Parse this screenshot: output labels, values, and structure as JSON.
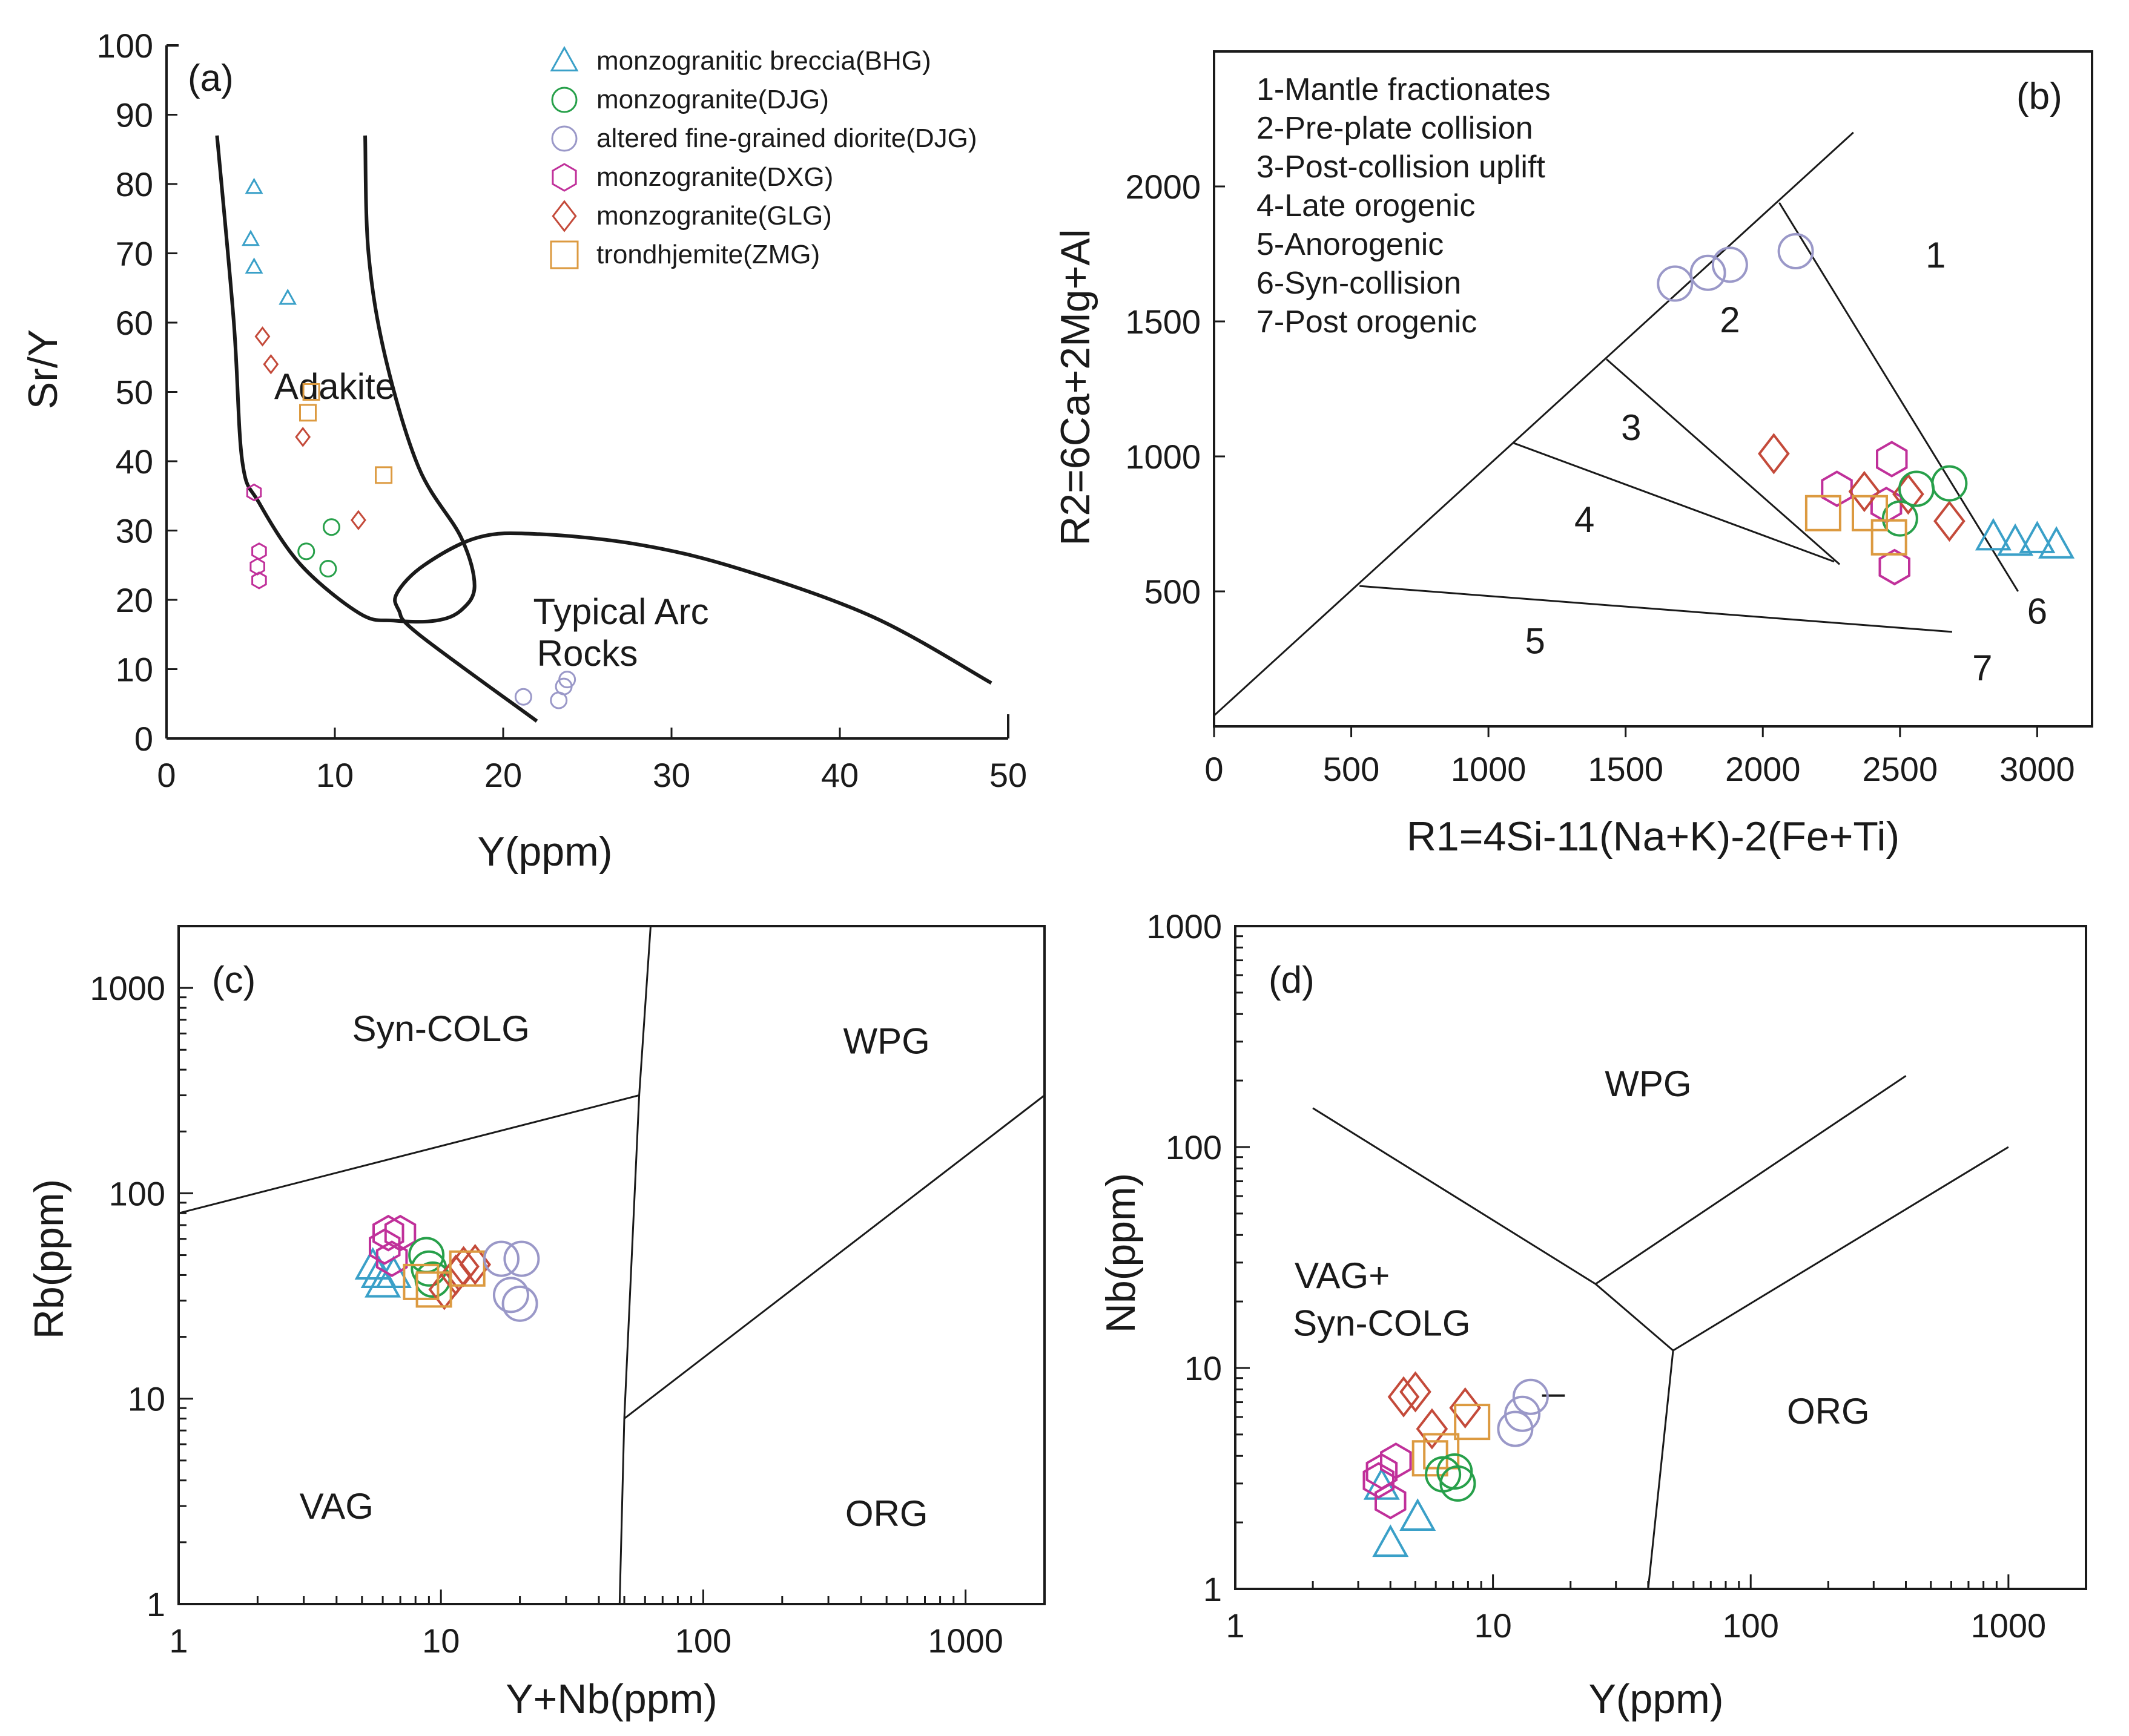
{
  "colors": {
    "BHG": "#3aa0c8",
    "DJG_mz": "#27a04a",
    "DJG_di": "#9a98c8",
    "DXG": "#c0309a",
    "GLG": "#c44a3a",
    "ZMG": "#dc9a40",
    "ink": "#1a1a1a"
  },
  "legend": [
    {
      "key": "BHG",
      "label": "monzogranitic breccia(BHG)",
      "marker": "triangle"
    },
    {
      "key": "DJG_mz",
      "label": "monzogranite(DJG)",
      "marker": "circle"
    },
    {
      "key": "DJG_di",
      "label": "altered fine-grained diorite(DJG)",
      "marker": "circle"
    },
    {
      "key": "DXG",
      "label": "monzogranite(DXG)",
      "marker": "hexagon"
    },
    {
      "key": "GLG",
      "label": "monzogranite(GLG)",
      "marker": "diamond"
    },
    {
      "key": "ZMG",
      "label": "trondhjemite(ZMG)",
      "marker": "square"
    }
  ],
  "chart_data": [
    {
      "id": "a",
      "type": "scatter",
      "panel_label": "(a)",
      "xlabel": "Y(ppm)",
      "ylabel": "Sr/Y",
      "xlim": [
        0,
        50
      ],
      "ylim": [
        0,
        100
      ],
      "xticks": [
        0,
        10,
        20,
        30,
        40,
        50
      ],
      "yticks": [
        0,
        10,
        20,
        30,
        40,
        50,
        60,
        70,
        80,
        90,
        100
      ],
      "regions": [
        {
          "label": "Adakite",
          "x": 10,
          "y": 49
        },
        {
          "label": "Typical Arc",
          "x": 27,
          "y": 16.5
        },
        {
          "label": "Rocks",
          "x": 25,
          "y": 10.5
        }
      ],
      "boundaries": [
        [
          [
            3,
            87
          ],
          [
            4,
            60
          ],
          [
            4.5,
            40
          ],
          [
            5.5,
            34
          ],
          [
            8,
            25
          ],
          [
            11.5,
            18
          ],
          [
            13.5,
            17
          ],
          [
            16,
            17
          ],
          [
            17.5,
            18.5
          ],
          [
            18.3,
            22
          ],
          [
            17.5,
            29
          ],
          [
            15,
            39
          ],
          [
            13,
            55
          ],
          [
            12,
            70
          ],
          [
            11.8,
            87
          ]
        ],
        [
          [
            22,
            2.5
          ],
          [
            15,
            15
          ],
          [
            13.8,
            18.5
          ],
          [
            13.7,
            21
          ],
          [
            15.3,
            25
          ],
          [
            18.5,
            29
          ],
          [
            22,
            29.5
          ],
          [
            28,
            28
          ],
          [
            34,
            24.5
          ],
          [
            42,
            17.5
          ],
          [
            49,
            8
          ]
        ]
      ],
      "series": [
        {
          "key": "BHG",
          "points": [
            [
              5.2,
              79.5
            ],
            [
              5.0,
              72
            ],
            [
              5.2,
              68
            ],
            [
              7.2,
              63.5
            ]
          ]
        },
        {
          "key": "DJG_mz",
          "points": [
            [
              8.3,
              27
            ],
            [
              9.8,
              30.5
            ],
            [
              9.6,
              24.5
            ]
          ]
        },
        {
          "key": "DJG_di",
          "points": [
            [
              21.2,
              6
            ],
            [
              23.3,
              5.5
            ],
            [
              23.8,
              8.5
            ],
            [
              23.6,
              7.5
            ]
          ]
        },
        {
          "key": "DXG",
          "points": [
            [
              5.2,
              35.5
            ],
            [
              5.5,
              27
            ],
            [
              5.4,
              24.8
            ],
            [
              5.5,
              22.8
            ]
          ]
        },
        {
          "key": "GLG",
          "points": [
            [
              5.7,
              58
            ],
            [
              6.2,
              54
            ],
            [
              8.1,
              43.5
            ],
            [
              11.4,
              31.5
            ]
          ]
        },
        {
          "key": "ZMG",
          "points": [
            [
              8.6,
              50
            ],
            [
              8.4,
              47
            ],
            [
              12.9,
              38
            ]
          ]
        }
      ]
    },
    {
      "id": "b",
      "type": "scatter",
      "panel_label": "(b)",
      "xlabel": "R1=4Si-11(Na+K)-2(Fe+Ti)",
      "ylabel": "R2=6Ca+2Mg+Al",
      "xlim": [
        0,
        3200
      ],
      "ylim": [
        0,
        2500
      ],
      "xticks": [
        0,
        500,
        1000,
        1500,
        2000,
        2500,
        3000
      ],
      "yticks": [
        500,
        1000,
        1500,
        2000
      ],
      "key_entries": [
        "1-Mantle fractionates",
        "2-Pre-plate collision",
        "3-Post-collision uplift",
        "4-Late orogenic",
        "5-Anorogenic",
        "6-Syn-collision",
        "7-Post orogenic"
      ],
      "regions": [
        {
          "label": "1",
          "x": 2630,
          "y": 1700
        },
        {
          "label": "2",
          "x": 1880,
          "y": 1460
        },
        {
          "label": "3",
          "x": 1520,
          "y": 1060
        },
        {
          "label": "4",
          "x": 1350,
          "y": 720
        },
        {
          "label": "5",
          "x": 1170,
          "y": 270
        },
        {
          "label": "6",
          "x": 3000,
          "y": 380
        },
        {
          "label": "7",
          "x": 2800,
          "y": 170
        }
      ],
      "boundaries": [
        [
          [
            0,
            40
          ],
          [
            2330,
            2200
          ]
        ],
        [
          [
            2060,
            1940
          ],
          [
            2930,
            500
          ]
        ],
        [
          [
            1430,
            1360
          ],
          [
            2280,
            600
          ]
        ],
        [
          [
            1090,
            1050
          ],
          [
            2260,
            610
          ]
        ],
        [
          [
            530,
            520
          ],
          [
            2690,
            350
          ]
        ]
      ],
      "series": [
        {
          "key": "DJG_di",
          "points": [
            [
              1680,
              1640
            ],
            [
              1800,
              1680
            ],
            [
              1880,
              1710
            ],
            [
              2120,
              1760
            ]
          ]
        },
        {
          "key": "DXG",
          "points": [
            [
              2270,
              880
            ],
            [
              2470,
              990
            ],
            [
              2450,
              820
            ],
            [
              2480,
              590
            ]
          ]
        },
        {
          "key": "GLG",
          "points": [
            [
              2040,
              1010
            ],
            [
              2370,
              870
            ],
            [
              2530,
              860
            ],
            [
              2680,
              760
            ]
          ]
        },
        {
          "key": "DJG_mz",
          "points": [
            [
              2680,
              900
            ],
            [
              2560,
              880
            ],
            [
              2500,
              770
            ]
          ]
        },
        {
          "key": "ZMG",
          "points": [
            [
              2220,
              790
            ],
            [
              2390,
              790
            ],
            [
              2460,
              700
            ]
          ]
        },
        {
          "key": "BHG",
          "points": [
            [
              2840,
              700
            ],
            [
              2920,
              680
            ],
            [
              3000,
              690
            ],
            [
              3070,
              670
            ]
          ]
        }
      ]
    },
    {
      "id": "c",
      "type": "scatter",
      "panel_label": "(c)",
      "xlabel": "Y+Nb(ppm)",
      "ylabel": "Rb(ppm)",
      "xscale": "log",
      "yscale": "log",
      "xlim": [
        1,
        2000
      ],
      "ylim": [
        1,
        2000
      ],
      "xticks": [
        1,
        10,
        100,
        1000
      ],
      "yticks": [
        1,
        10,
        100,
        1000
      ],
      "regions": [
        {
          "label": "Syn-COLG",
          "x": 10,
          "y": 550
        },
        {
          "label": "WPG",
          "x": 500,
          "y": 480
        },
        {
          "label": "VAG",
          "x": 4,
          "y": 2.6
        },
        {
          "label": "ORG",
          "x": 500,
          "y": 2.4
        }
      ],
      "boundaries": [
        [
          [
            1,
            80
          ],
          [
            57,
            300
          ],
          [
            63,
            2000
          ]
        ],
        [
          [
            57,
            300
          ],
          [
            50,
            8
          ],
          [
            48,
            1
          ]
        ],
        [
          [
            50,
            8
          ],
          [
            2000,
            300
          ]
        ]
      ],
      "series": [
        {
          "key": "BHG",
          "points": [
            [
              5.5,
              44
            ],
            [
              6.0,
              36
            ],
            [
              6.6,
              40
            ],
            [
              5.8,
              40
            ]
          ]
        },
        {
          "key": "DXG",
          "points": [
            [
              6.3,
              64
            ],
            [
              7.0,
              64
            ],
            [
              6.1,
              55
            ],
            [
              6.5,
              48
            ]
          ]
        },
        {
          "key": "DJG_mz",
          "points": [
            [
              8.8,
              50
            ],
            [
              9.0,
              43
            ],
            [
              9.3,
              38
            ]
          ]
        },
        {
          "key": "GLG",
          "points": [
            [
              10.3,
              34
            ],
            [
              11.4,
              40
            ],
            [
              12.2,
              44
            ],
            [
              13.5,
              45
            ]
          ]
        },
        {
          "key": "ZMG",
          "points": [
            [
              8.4,
              37
            ],
            [
              9.4,
              34
            ],
            [
              12.6,
              43
            ]
          ]
        },
        {
          "key": "DJG_di",
          "points": [
            [
              17,
              48
            ],
            [
              20.3,
              48
            ],
            [
              18.5,
              32
            ],
            [
              20.0,
              29
            ]
          ]
        }
      ]
    },
    {
      "id": "d",
      "type": "scatter",
      "panel_label": "(d)",
      "xlabel": "Y(ppm)",
      "ylabel": "Nb(ppm)",
      "xscale": "log",
      "yscale": "log",
      "xlim": [
        1,
        2000
      ],
      "ylim": [
        1,
        1000
      ],
      "xticks": [
        1,
        10,
        100,
        1000
      ],
      "yticks": [
        1,
        10,
        100,
        1000
      ],
      "regions": [
        {
          "label": "WPG",
          "x": 40,
          "y": 170
        },
        {
          "label": "VAG+",
          "x": 2.6,
          "y": 23
        },
        {
          "label": "Syn-COLG",
          "x": 3.7,
          "y": 14
        },
        {
          "label": "ORG",
          "x": 200,
          "y": 5.6
        }
      ],
      "boundaries": [
        [
          [
            2,
            150
          ],
          [
            25,
            24
          ],
          [
            50,
            12
          ]
        ],
        [
          [
            25,
            24
          ],
          [
            400,
            210
          ]
        ],
        [
          [
            50,
            12
          ],
          [
            1000,
            100
          ]
        ],
        [
          [
            50,
            12
          ],
          [
            40,
            1
          ]
        ]
      ],
      "series": [
        {
          "key": "BHG",
          "points": [
            [
              3.7,
              2.9
            ],
            [
              5.1,
              2.1
            ],
            [
              4.0,
              1.6
            ]
          ]
        },
        {
          "key": "DXG",
          "points": [
            [
              3.7,
              3.4
            ],
            [
              4.2,
              3.8
            ],
            [
              4.0,
              2.5
            ],
            [
              3.6,
              3.1
            ]
          ]
        },
        {
          "key": "GLG",
          "points": [
            [
              4.5,
              7.4
            ],
            [
              5.0,
              7.8
            ],
            [
              5.8,
              5.3
            ],
            [
              7.8,
              6.6
            ]
          ]
        },
        {
          "key": "ZMG",
          "points": [
            [
              5.7,
              3.9
            ],
            [
              6.3,
              4.2
            ],
            [
              8.3,
              5.7
            ]
          ]
        },
        {
          "key": "DJG_mz",
          "points": [
            [
              6.4,
              3.3
            ],
            [
              7.1,
              3.4
            ],
            [
              7.3,
              3.0
            ]
          ]
        },
        {
          "key": "DJG_di",
          "points": [
            [
              12.2,
              5.3
            ],
            [
              13.0,
              6.2
            ],
            [
              14.0,
              7.4
            ]
          ]
        }
      ]
    }
  ]
}
